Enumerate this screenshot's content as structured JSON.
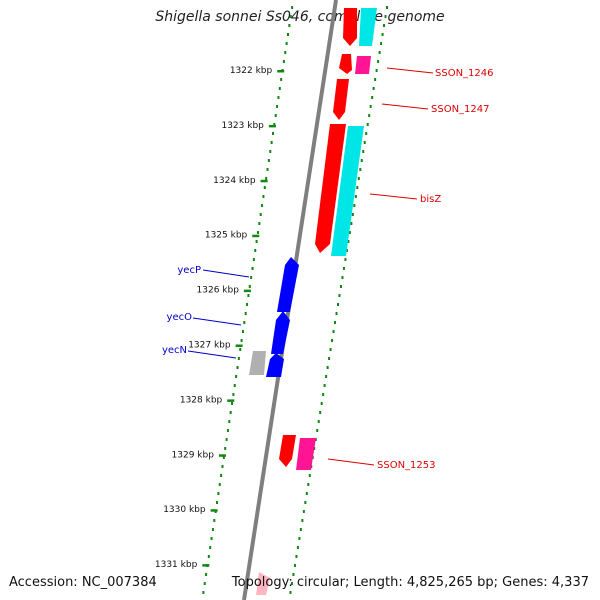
{
  "title": "Shigella sonnei Ss046, complete genome",
  "accession_text": "Accession: NC_007384",
  "topology_text": "Topology: circular; Length: 4,825,265 bp; Genes: 4,337",
  "ticks": [
    {
      "label": "1322 kbp",
      "kbp": 1322
    },
    {
      "label": "1323 kbp",
      "kbp": 1323
    },
    {
      "label": "1324 kbp",
      "kbp": 1324
    },
    {
      "label": "1325 kbp",
      "kbp": 1325
    },
    {
      "label": "1326 kbp",
      "kbp": 1326
    },
    {
      "label": "1327 kbp",
      "kbp": 1327
    },
    {
      "label": "1328 kbp",
      "kbp": 1328
    },
    {
      "label": "1329 kbp",
      "kbp": 1329
    },
    {
      "label": "1330 kbp",
      "kbp": 1330
    },
    {
      "label": "1331 kbp",
      "kbp": 1331
    }
  ],
  "gene_labels": [
    {
      "name": "SSON_1246",
      "side": "right",
      "color": "#dd0000"
    },
    {
      "name": "SSON_1247",
      "side": "right",
      "color": "#dd0000"
    },
    {
      "name": "bisZ",
      "side": "right",
      "color": "#dd0000"
    },
    {
      "name": "yecP",
      "side": "left",
      "color": "#0000cc"
    },
    {
      "name": "yecO",
      "side": "left",
      "color": "#0000cc"
    },
    {
      "name": "yecN",
      "side": "left",
      "color": "#0000cc"
    },
    {
      "name": "SSON_1253",
      "side": "right",
      "color": "#dd0000"
    }
  ],
  "colors": {
    "backbone": "#808080",
    "tick_dots": "#118811",
    "forward_gene": "#ff0000",
    "reverse_gene": "#0000ff",
    "cyan_feature": "#00e5e5",
    "magenta_feature": "#ff1493",
    "grey_feature": "#b0b0b0",
    "pink_feature": "#ffb6c1"
  }
}
